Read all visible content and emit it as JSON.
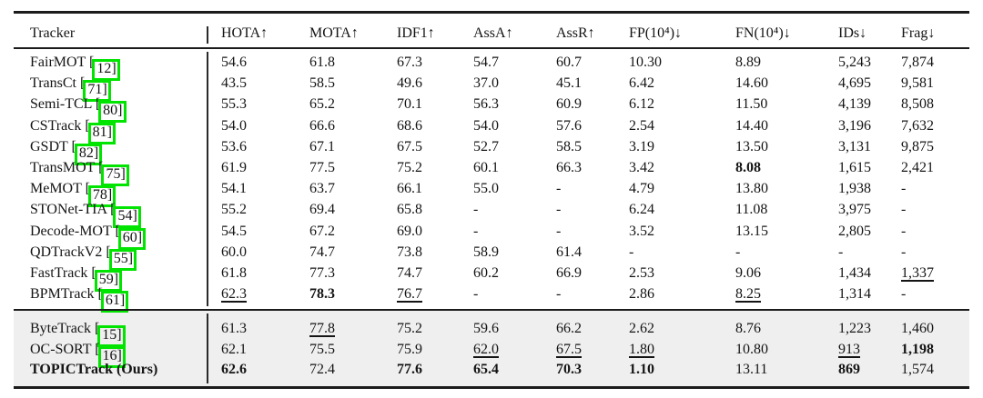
{
  "columns": [
    "Tracker",
    "HOTA↑",
    "MOTA↑",
    "IDF1↑",
    "AssA↑",
    "AssR↑",
    "FP(10⁴)↓",
    "FN(10⁴)↓",
    "IDs↓",
    "Frag↓"
  ],
  "cite_brackets": [
    "[",
    "]"
  ],
  "annotation_color": "#00e400",
  "highlight_bg": "#efefef",
  "body_rows": [
    {
      "name": "FairMOT",
      "cite": "12",
      "vals": [
        [
          "54.6",
          ""
        ],
        [
          "61.8",
          ""
        ],
        [
          "67.3",
          ""
        ],
        [
          "54.7",
          ""
        ],
        [
          "60.7",
          ""
        ],
        [
          "10.30",
          ""
        ],
        [
          "8.89",
          ""
        ],
        [
          "5,243",
          ""
        ],
        [
          "7,874",
          ""
        ]
      ]
    },
    {
      "name": "TransCt",
      "cite": "71",
      "vals": [
        [
          "43.5",
          ""
        ],
        [
          "58.5",
          ""
        ],
        [
          "49.6",
          ""
        ],
        [
          "37.0",
          ""
        ],
        [
          "45.1",
          ""
        ],
        [
          "6.42",
          ""
        ],
        [
          "14.60",
          ""
        ],
        [
          "4,695",
          ""
        ],
        [
          "9,581",
          ""
        ]
      ]
    },
    {
      "name": "Semi-TCL",
      "cite": "80",
      "vals": [
        [
          "55.3",
          ""
        ],
        [
          "65.2",
          ""
        ],
        [
          "70.1",
          ""
        ],
        [
          "56.3",
          ""
        ],
        [
          "60.9",
          ""
        ],
        [
          "6.12",
          ""
        ],
        [
          "11.50",
          ""
        ],
        [
          "4,139",
          ""
        ],
        [
          "8,508",
          ""
        ]
      ]
    },
    {
      "name": "CSTrack",
      "cite": "81",
      "vals": [
        [
          "54.0",
          ""
        ],
        [
          "66.6",
          ""
        ],
        [
          "68.6",
          ""
        ],
        [
          "54.0",
          ""
        ],
        [
          "57.6",
          ""
        ],
        [
          "2.54",
          ""
        ],
        [
          "14.40",
          ""
        ],
        [
          "3,196",
          ""
        ],
        [
          "7,632",
          ""
        ]
      ]
    },
    {
      "name": "GSDT",
      "cite": "82",
      "vals": [
        [
          "53.6",
          ""
        ],
        [
          "67.1",
          ""
        ],
        [
          "67.5",
          ""
        ],
        [
          "52.7",
          ""
        ],
        [
          "58.5",
          ""
        ],
        [
          "3.19",
          ""
        ],
        [
          "13.50",
          ""
        ],
        [
          "3,131",
          ""
        ],
        [
          "9,875",
          ""
        ]
      ]
    },
    {
      "name": "TransMOT",
      "cite": "75",
      "vals": [
        [
          "61.9",
          ""
        ],
        [
          "77.5",
          ""
        ],
        [
          "75.2",
          ""
        ],
        [
          "60.1",
          ""
        ],
        [
          "66.3",
          ""
        ],
        [
          "3.42",
          ""
        ],
        [
          "8.08",
          "b"
        ],
        [
          "1,615",
          ""
        ],
        [
          "2,421",
          ""
        ]
      ]
    },
    {
      "name": "MeMOT",
      "cite": "78",
      "vals": [
        [
          "54.1",
          ""
        ],
        [
          "63.7",
          ""
        ],
        [
          "66.1",
          ""
        ],
        [
          "55.0",
          ""
        ],
        [
          "-",
          ""
        ],
        [
          "4.79",
          ""
        ],
        [
          "13.80",
          ""
        ],
        [
          "1,938",
          ""
        ],
        [
          "-",
          ""
        ]
      ]
    },
    {
      "name": "STONet-TIA",
      "cite": "54",
      "vals": [
        [
          "55.2",
          ""
        ],
        [
          "69.4",
          ""
        ],
        [
          "65.8",
          ""
        ],
        [
          "-",
          ""
        ],
        [
          "-",
          ""
        ],
        [
          "6.24",
          ""
        ],
        [
          "11.08",
          ""
        ],
        [
          "3,975",
          ""
        ],
        [
          "-",
          ""
        ]
      ]
    },
    {
      "name": "Decode-MOT",
      "cite": "60",
      "vals": [
        [
          "54.5",
          ""
        ],
        [
          "67.2",
          ""
        ],
        [
          "69.0",
          ""
        ],
        [
          "-",
          ""
        ],
        [
          "-",
          ""
        ],
        [
          "3.52",
          ""
        ],
        [
          "13.15",
          ""
        ],
        [
          "2,805",
          ""
        ],
        [
          "-",
          ""
        ]
      ]
    },
    {
      "name": "QDTrackV2",
      "cite": "55",
      "vals": [
        [
          "60.0",
          ""
        ],
        [
          "74.7",
          ""
        ],
        [
          "73.8",
          ""
        ],
        [
          "58.9",
          ""
        ],
        [
          "61.4",
          ""
        ],
        [
          "-",
          ""
        ],
        [
          "-",
          ""
        ],
        [
          "-",
          ""
        ],
        [
          "-",
          ""
        ]
      ]
    },
    {
      "name": "FastTrack",
      "cite": "59",
      "vals": [
        [
          "61.8",
          ""
        ],
        [
          "77.3",
          ""
        ],
        [
          "74.7",
          ""
        ],
        [
          "60.2",
          ""
        ],
        [
          "66.9",
          ""
        ],
        [
          "2.53",
          ""
        ],
        [
          "9.06",
          ""
        ],
        [
          "1,434",
          ""
        ],
        [
          "1,337",
          "u"
        ]
      ]
    },
    {
      "name": "BPMTrack",
      "cite": "61",
      "vals": [
        [
          "62.3",
          "u"
        ],
        [
          "78.3",
          "b"
        ],
        [
          "76.7",
          "u"
        ],
        [
          "-",
          ""
        ],
        [
          "-",
          ""
        ],
        [
          "2.86",
          ""
        ],
        [
          "8.25",
          "u"
        ],
        [
          "1,314",
          ""
        ],
        [
          "-",
          ""
        ]
      ]
    }
  ],
  "highlight_rows": [
    {
      "name": "ByteTrack",
      "cite": "15",
      "vals": [
        [
          "61.3",
          ""
        ],
        [
          "77.8",
          "u"
        ],
        [
          "75.2",
          ""
        ],
        [
          "59.6",
          ""
        ],
        [
          "66.2",
          ""
        ],
        [
          "2.62",
          ""
        ],
        [
          "8.76",
          ""
        ],
        [
          "1,223",
          ""
        ],
        [
          "1,460",
          ""
        ]
      ]
    },
    {
      "name": "OC-SORT",
      "cite": "16",
      "vals": [
        [
          "62.1",
          ""
        ],
        [
          "75.5",
          ""
        ],
        [
          "75.9",
          ""
        ],
        [
          "62.0",
          "u"
        ],
        [
          "67.5",
          "u"
        ],
        [
          "1.80",
          "u"
        ],
        [
          "10.80",
          ""
        ],
        [
          "913",
          "u"
        ],
        [
          "1,198",
          "b"
        ]
      ]
    },
    {
      "name": "TOPICTrack (Ours)",
      "cite": "",
      "name_bold": true,
      "vals": [
        [
          "62.6",
          "b"
        ],
        [
          "72.4",
          ""
        ],
        [
          "77.6",
          "b"
        ],
        [
          "65.4",
          "b"
        ],
        [
          "70.3",
          "b"
        ],
        [
          "1.10",
          "b"
        ],
        [
          "13.11",
          ""
        ],
        [
          "869",
          "b"
        ],
        [
          "1,574",
          ""
        ]
      ]
    }
  ]
}
